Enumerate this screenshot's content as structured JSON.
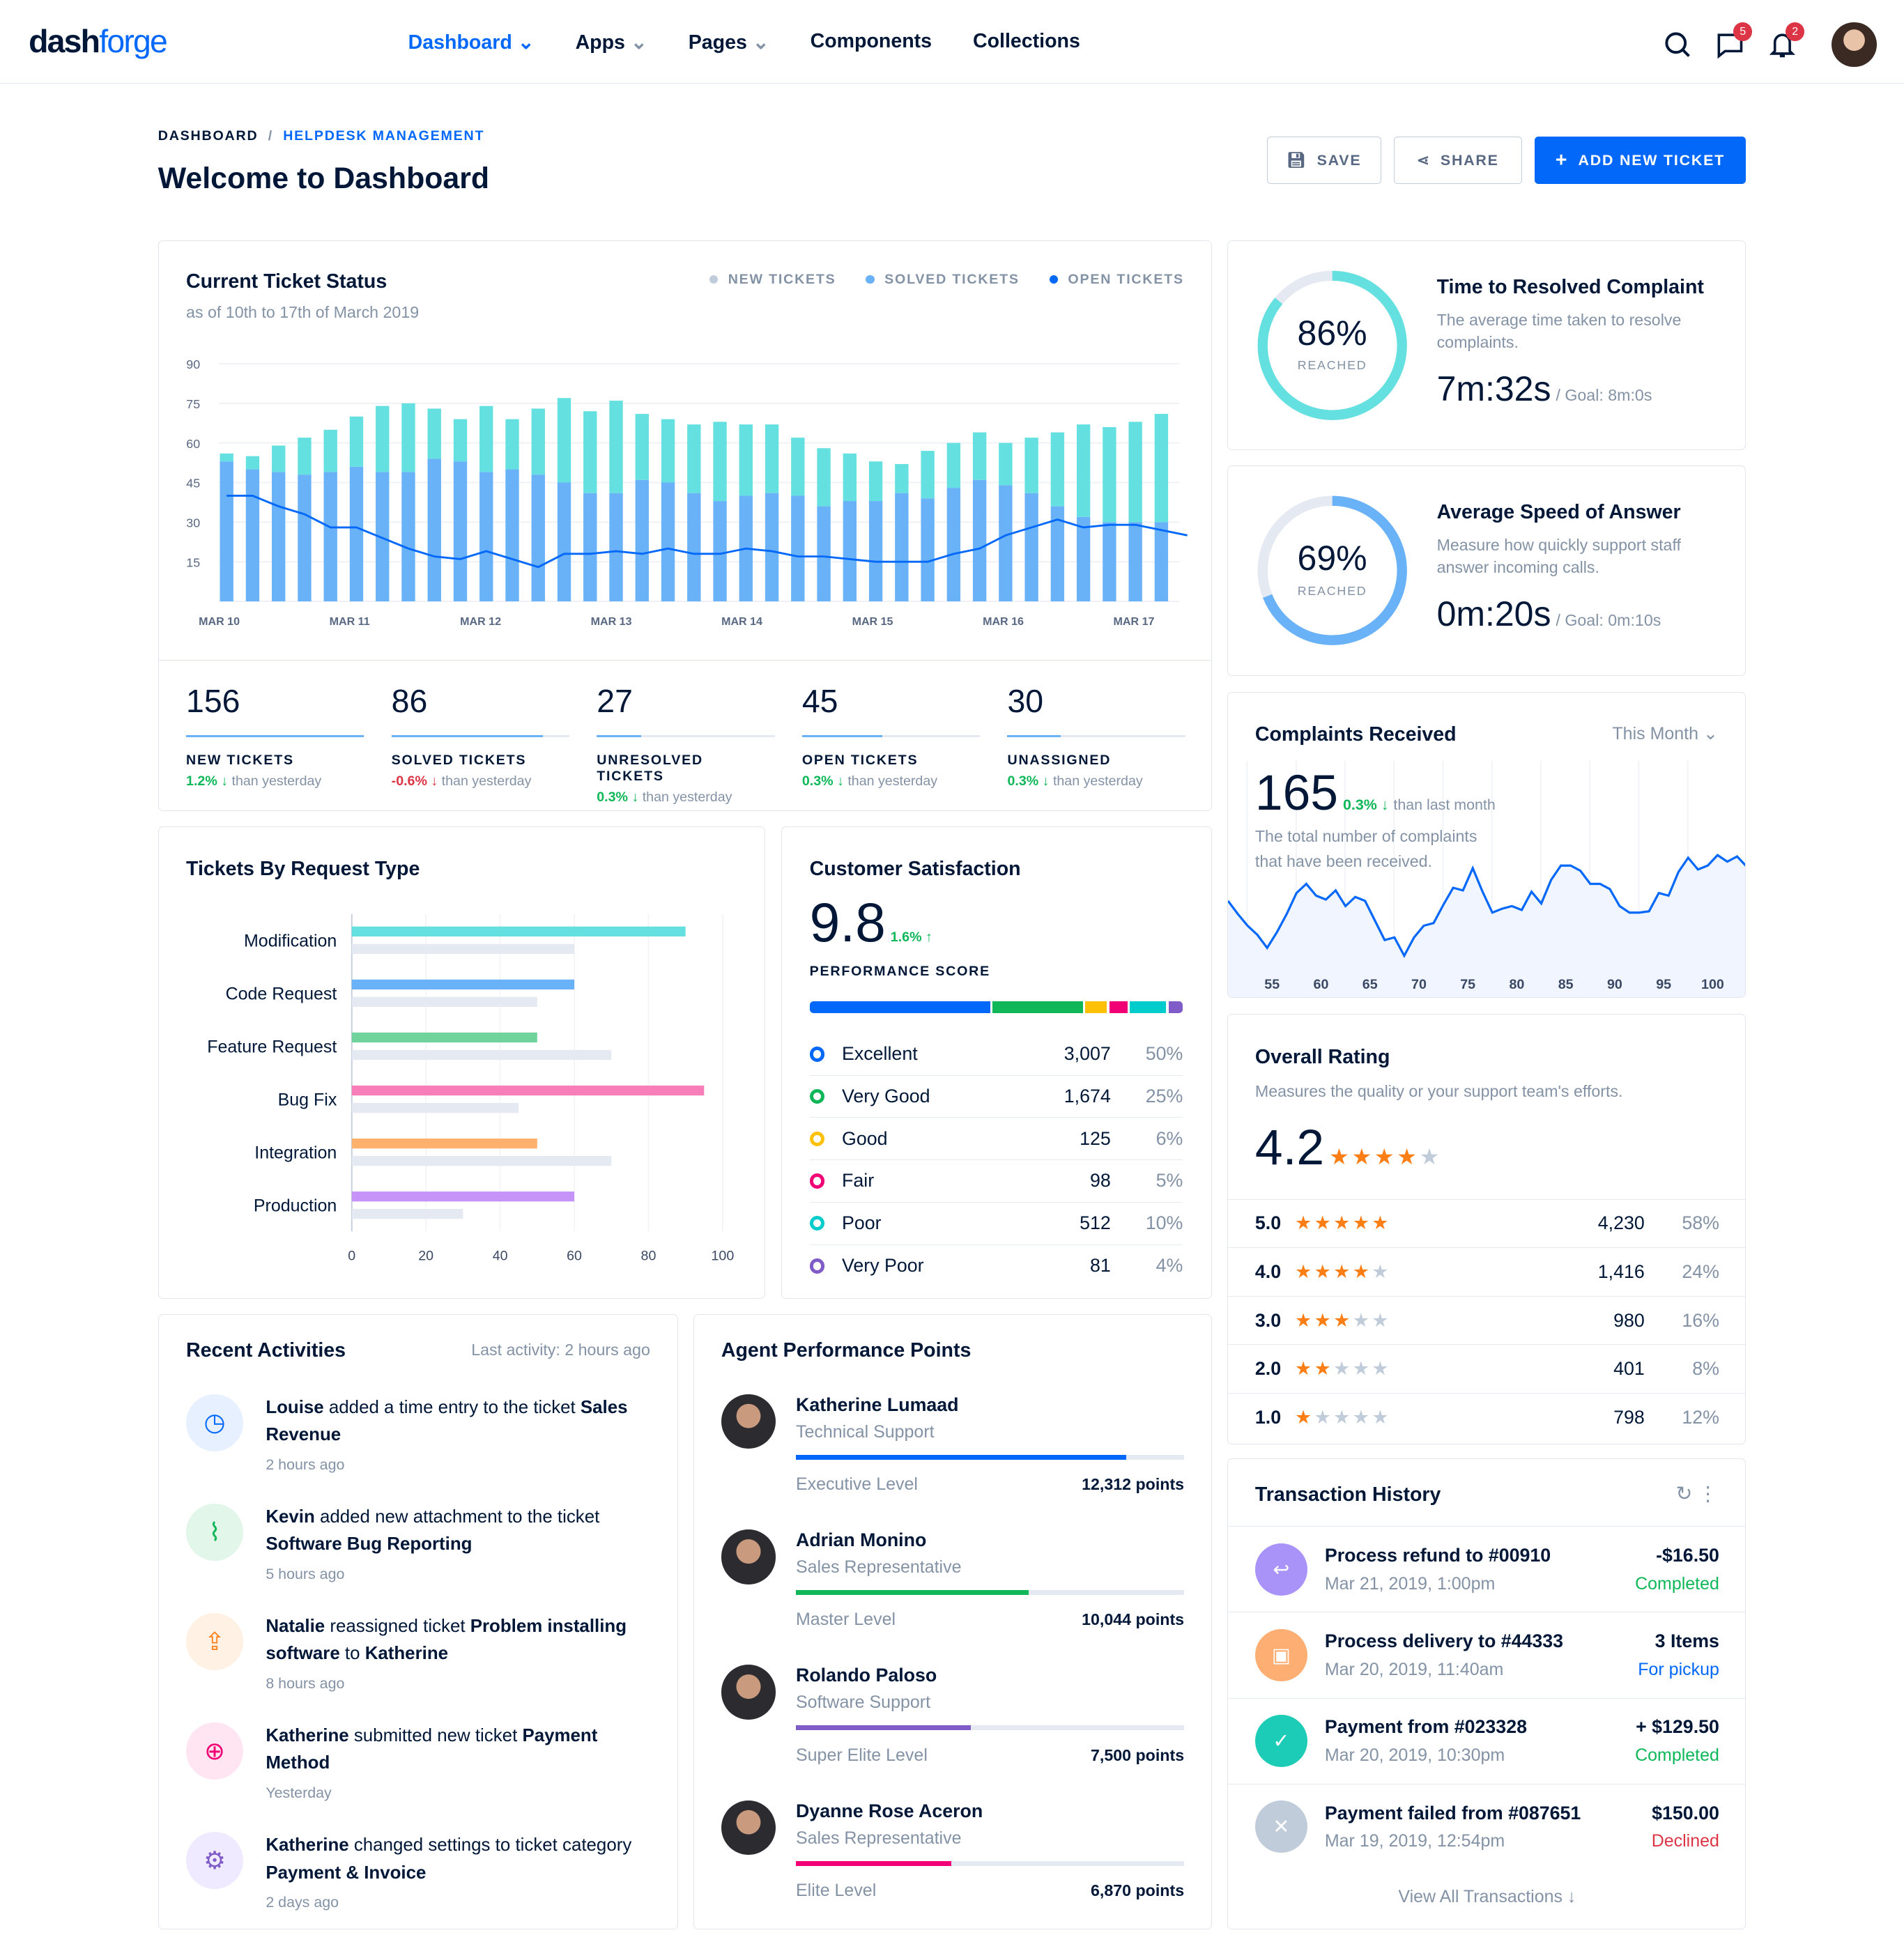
{
  "header": {
    "logo_a": "dash",
    "logo_b": "forge",
    "nav": [
      "Dashboard",
      "Apps",
      "Pages",
      "Components",
      "Collections"
    ],
    "messages_badge": "5",
    "notifications_badge": "2"
  },
  "breadcrumb": {
    "root": "DASHBOARD",
    "current": "HELPDESK MANAGEMENT"
  },
  "page_title": "Welcome to Dashboard",
  "actions": {
    "save": "SAVE",
    "share": "SHARE",
    "add": "ADD NEW TICKET"
  },
  "ticket_status": {
    "title": "Current Ticket Status",
    "subtitle": "as of 10th to 17th of March 2019",
    "legend": [
      "NEW TICKETS",
      "SOLVED TICKETS",
      "OPEN TICKETS"
    ],
    "stats": [
      {
        "value": "156",
        "label": "NEW TICKETS",
        "change": "1.2%",
        "dir": "↓",
        "suffix": "than yesterday",
        "color": "green",
        "progress": 100
      },
      {
        "value": "86",
        "label": "SOLVED TICKETS",
        "change": "-0.6%",
        "dir": "↓",
        "suffix": "than yesterday",
        "color": "red",
        "progress": 85
      },
      {
        "value": "27",
        "label": "UNRESOLVED TICKETS",
        "change": "0.3%",
        "dir": "↓",
        "suffix": "than yesterday",
        "color": "green",
        "progress": 25
      },
      {
        "value": "45",
        "label": "OPEN TICKETS",
        "change": "0.3%",
        "dir": "↓",
        "suffix": "than yesterday",
        "color": "green",
        "progress": 45
      },
      {
        "value": "30",
        "label": "UNASSIGNED",
        "change": "0.3%",
        "dir": "↓",
        "suffix": "than yesterday",
        "color": "green",
        "progress": 30
      }
    ]
  },
  "chart_data": [
    {
      "type": "bar",
      "title": "Current Ticket Status",
      "stacked": true,
      "ylim": [
        0,
        90
      ],
      "yticks": [
        "15",
        "30",
        "45",
        "60",
        "75",
        "90"
      ],
      "xticks": [
        "MAR 10",
        "MAR 11",
        "MAR 12",
        "MAR 13",
        "MAR 14",
        "MAR 15",
        "MAR 16",
        "MAR 17"
      ],
      "series": [
        {
          "name": "Solved",
          "color": "#69b2f8",
          "values": [
            53,
            50,
            49,
            48,
            49,
            51,
            49,
            49,
            54,
            53,
            49,
            50,
            48,
            45,
            41,
            41,
            46,
            45,
            41,
            38,
            40,
            41,
            40,
            36,
            38,
            38,
            41,
            39,
            43,
            46,
            44,
            41,
            36,
            32,
            30,
            30,
            30
          ]
        },
        {
          "name": "New",
          "color": "#65e0e0",
          "values": [
            3,
            5,
            10,
            14,
            16,
            19,
            25,
            26,
            19,
            16,
            25,
            19,
            25,
            32,
            31,
            35,
            25,
            24,
            26,
            30,
            27,
            26,
            22,
            22,
            18,
            15,
            11,
            18,
            17,
            18,
            16,
            21,
            28,
            35,
            36,
            38,
            41
          ]
        },
        {
          "name": "Open",
          "type": "line",
          "color": "#0168fa",
          "values": [
            40,
            40,
            36,
            33,
            28,
            28,
            24,
            20,
            17,
            16,
            19,
            16,
            13,
            18,
            18,
            19,
            18,
            20,
            18,
            18,
            20,
            19,
            17,
            17,
            16,
            15,
            15,
            15,
            18,
            20,
            25,
            28,
            31,
            28,
            29,
            29,
            27,
            25
          ]
        }
      ]
    },
    {
      "type": "area",
      "title": "Complaints Received",
      "xticks": [
        "55",
        "60",
        "65",
        "70",
        "75",
        "80",
        "85",
        "90",
        "95",
        "100"
      ],
      "xlim": [
        50.5,
        103.5
      ],
      "x": [
        50.5,
        51.5,
        52.5,
        53.5,
        54.5,
        55.5,
        56.5,
        57.5,
        58.5,
        59.5,
        60.5,
        61.5,
        62.5,
        63.5,
        64.5,
        65.5,
        66.5,
        67.5,
        68.5,
        69.5,
        70.5,
        71.5,
        72.5,
        73.5,
        74.5,
        75.5,
        76.5,
        77.5,
        78.5,
        79.5,
        80.5,
        81.5,
        82.5,
        83.5,
        84.5,
        85.5,
        86.5,
        87.5,
        88.5,
        89.5,
        90.5,
        91.5,
        92.5,
        93.5,
        94.5,
        95.5,
        96.5,
        97.5,
        98.5,
        99.5,
        100.5,
        101.5,
        102.5,
        103.5
      ],
      "values": [
        50,
        40,
        31,
        24,
        14,
        26,
        40,
        56,
        63,
        54,
        51,
        58,
        46,
        53,
        50,
        35,
        20,
        22,
        8,
        22,
        31,
        33,
        47,
        60,
        58,
        75,
        57,
        41,
        44,
        46,
        43,
        57,
        48,
        66,
        77,
        77,
        73,
        63,
        63,
        59,
        46,
        41,
        41,
        42,
        56,
        54,
        72,
        83,
        74,
        77,
        85,
        80,
        84,
        76
      ]
    }
  ],
  "resolve": {
    "pct": "86%",
    "reached": "REACHED",
    "title": "Time to Resolved Complaint",
    "desc": "The average time taken to resolve complaints.",
    "value": "7m:32s",
    "goal": "/ Goal: 8m:0s",
    "fraction": 0.86
  },
  "speed": {
    "pct": "69%",
    "reached": "REACHED",
    "title": "Average Speed of Answer",
    "desc": "Measure how quickly support staff answer incoming calls.",
    "value": "0m:20s",
    "goal": "/ Goal: 0m:10s",
    "fraction": 0.69
  },
  "complaints": {
    "title": "Complaints Received",
    "period": "This Month",
    "value": "165",
    "change": "0.3%",
    "suffix": "than last month",
    "desc": "The total number of complaints that have been received."
  },
  "request_types": {
    "title": "Tickets By Request Type",
    "xticks": [
      "0",
      "20",
      "40",
      "60",
      "80",
      "100"
    ],
    "items": [
      {
        "label": "Modification",
        "value": 90,
        "prev": 60,
        "color": "#65e0e0"
      },
      {
        "label": "Code Request",
        "value": 60,
        "prev": 50,
        "color": "#69b2f8"
      },
      {
        "label": "Feature Request",
        "value": 50,
        "prev": 70,
        "color": "#6fd39b"
      },
      {
        "label": "Bug Fix",
        "value": 95,
        "prev": 45,
        "color": "#f77eb9"
      },
      {
        "label": "Integration",
        "value": 50,
        "prev": 70,
        "color": "#fdb16d"
      },
      {
        "label": "Production",
        "value": 60,
        "prev": 30,
        "color": "#c693f9"
      }
    ]
  },
  "satisfaction": {
    "title": "Customer Satisfaction",
    "score": "9.8",
    "change": "1.6%",
    "label": "PERFORMANCE SCORE",
    "rows": [
      {
        "name": "Excellent",
        "count": "3,007",
        "pct": "50%",
        "color": "#0168fa",
        "share": 50
      },
      {
        "name": "Very Good",
        "count": "1,674",
        "pct": "25%",
        "color": "#10b759",
        "share": 25
      },
      {
        "name": "Good",
        "count": "125",
        "pct": "6%",
        "color": "#ffc107",
        "share": 6
      },
      {
        "name": "Fair",
        "count": "98",
        "pct": "5%",
        "color": "#f10075",
        "share": 5
      },
      {
        "name": "Poor",
        "count": "512",
        "pct": "10%",
        "color": "#00cccc",
        "share": 10
      },
      {
        "name": "Very Poor",
        "count": "81",
        "pct": "4%",
        "color": "#7f5cc7",
        "share": 4
      }
    ]
  },
  "rating": {
    "title": "Overall Rating",
    "desc": "Measures the quality or your support team's efforts.",
    "value": "4.2",
    "stars": 4,
    "rows": [
      {
        "score": "5.0",
        "stars": 5,
        "count": "4,230",
        "pct": "58%"
      },
      {
        "score": "4.0",
        "stars": 4,
        "count": "1,416",
        "pct": "24%"
      },
      {
        "score": "3.0",
        "stars": 3,
        "count": "980",
        "pct": "16%"
      },
      {
        "score": "2.0",
        "stars": 2,
        "count": "401",
        "pct": "8%"
      },
      {
        "score": "1.0",
        "stars": 1,
        "count": "798",
        "pct": "12%"
      }
    ]
  },
  "activities": {
    "title": "Recent Activities",
    "last": "Last activity: 2 hours ago",
    "items": [
      {
        "a": "Louise",
        "b": " added a time entry to the ticket ",
        "c": "Sales Revenue",
        "d": "",
        "e": "",
        "time": "2 hours ago"
      },
      {
        "a": "Kevin",
        "b": " added new attachment to the ticket ",
        "c": "Software Bug Reporting",
        "d": "",
        "e": "",
        "time": "5 hours ago"
      },
      {
        "a": "Natalie",
        "b": " reassigned ticket ",
        "c": "Problem installing software",
        "d": " to ",
        "e": "Katherine",
        "time": "8 hours ago"
      },
      {
        "a": "Katherine",
        "b": " submitted new ticket ",
        "c": "Payment Method",
        "d": "",
        "e": "",
        "time": "Yesterday"
      },
      {
        "a": "Katherine",
        "b": " changed settings to ticket category ",
        "c": "Payment & Invoice",
        "d": "",
        "e": "",
        "time": "2 days ago"
      }
    ]
  },
  "agents": {
    "title": "Agent Performance Points",
    "items": [
      {
        "name": "Katherine Lumaad",
        "role": "Technical Support",
        "level": "Executive Level",
        "points": "12,312 points",
        "progress": 85,
        "color": "#0168fa"
      },
      {
        "name": "Adrian Monino",
        "role": "Sales Representative",
        "level": "Master Level",
        "points": "10,044 points",
        "progress": 60,
        "color": "#10b759"
      },
      {
        "name": "Rolando Paloso",
        "role": "Software Support",
        "level": "Super Elite Level",
        "points": "7,500 points",
        "progress": 45,
        "color": "#7f5cc7"
      },
      {
        "name": "Dyanne Rose Aceron",
        "role": "Sales Representative",
        "level": "Elite Level",
        "points": "6,870 points",
        "progress": 40,
        "color": "#f10075"
      }
    ]
  },
  "transactions": {
    "title": "Transaction History",
    "view_all": "View All Transactions",
    "items": [
      {
        "title": "Process refund to #00910",
        "date": "Mar 21, 2019, 1:00pm",
        "amount": "-$16.50",
        "status": "Completed",
        "scolor": "#10b759",
        "icolor": "#a993f9",
        "icon": "↩"
      },
      {
        "title": "Process delivery to #44333",
        "date": "Mar 20, 2019, 11:40am",
        "amount": "3 Items",
        "status": "For pickup",
        "scolor": "#0168fa",
        "icolor": "#fdae72",
        "icon": "▣"
      },
      {
        "title": "Payment from #023328",
        "date": "Mar 20, 2019, 10:30pm",
        "amount": "+ $129.50",
        "status": "Completed",
        "scolor": "#10b759",
        "icolor": "#1cccb6",
        "icon": "✓"
      },
      {
        "title": "Payment failed from #087651",
        "date": "Mar 19, 2019, 12:54pm",
        "amount": "$150.00",
        "status": "Declined",
        "scolor": "#dc3545",
        "icolor": "#c0ccda",
        "icon": "✕"
      }
    ]
  }
}
